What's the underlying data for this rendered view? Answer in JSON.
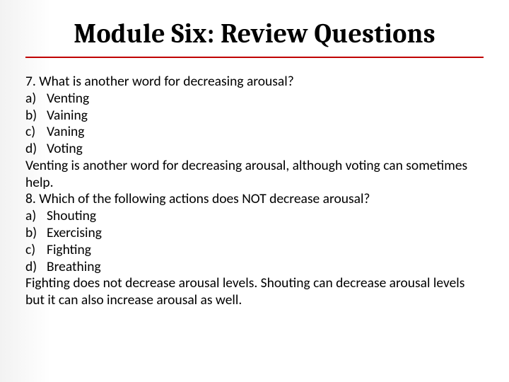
{
  "title": "Module Six: Review Questions",
  "underline_color": "#c00000",
  "content_color": "#000000",
  "q7": {
    "prompt": "7. What is another word for decreasing arousal?",
    "a": "a)",
    "a_text": "Venting",
    "b": "b)",
    "b_text": "Vaining",
    "c": "c)",
    "c_text": "Vaning",
    "d": "d)",
    "d_text": "Voting",
    "answer": "Venting is another word for decreasing arousal, although voting can sometimes help."
  },
  "q8": {
    "prompt": "8. Which of the following actions does NOT decrease arousal?",
    "a": "a)",
    "a_text": "Shouting",
    "b": "b)",
    "b_text": "Exercising",
    "c": "c)",
    "c_text": "Fighting",
    "d": "d)",
    "d_text": "Breathing",
    "answer": "Fighting does not decrease arousal levels. Shouting can decrease arousal levels but it can also increase arousal as well."
  }
}
